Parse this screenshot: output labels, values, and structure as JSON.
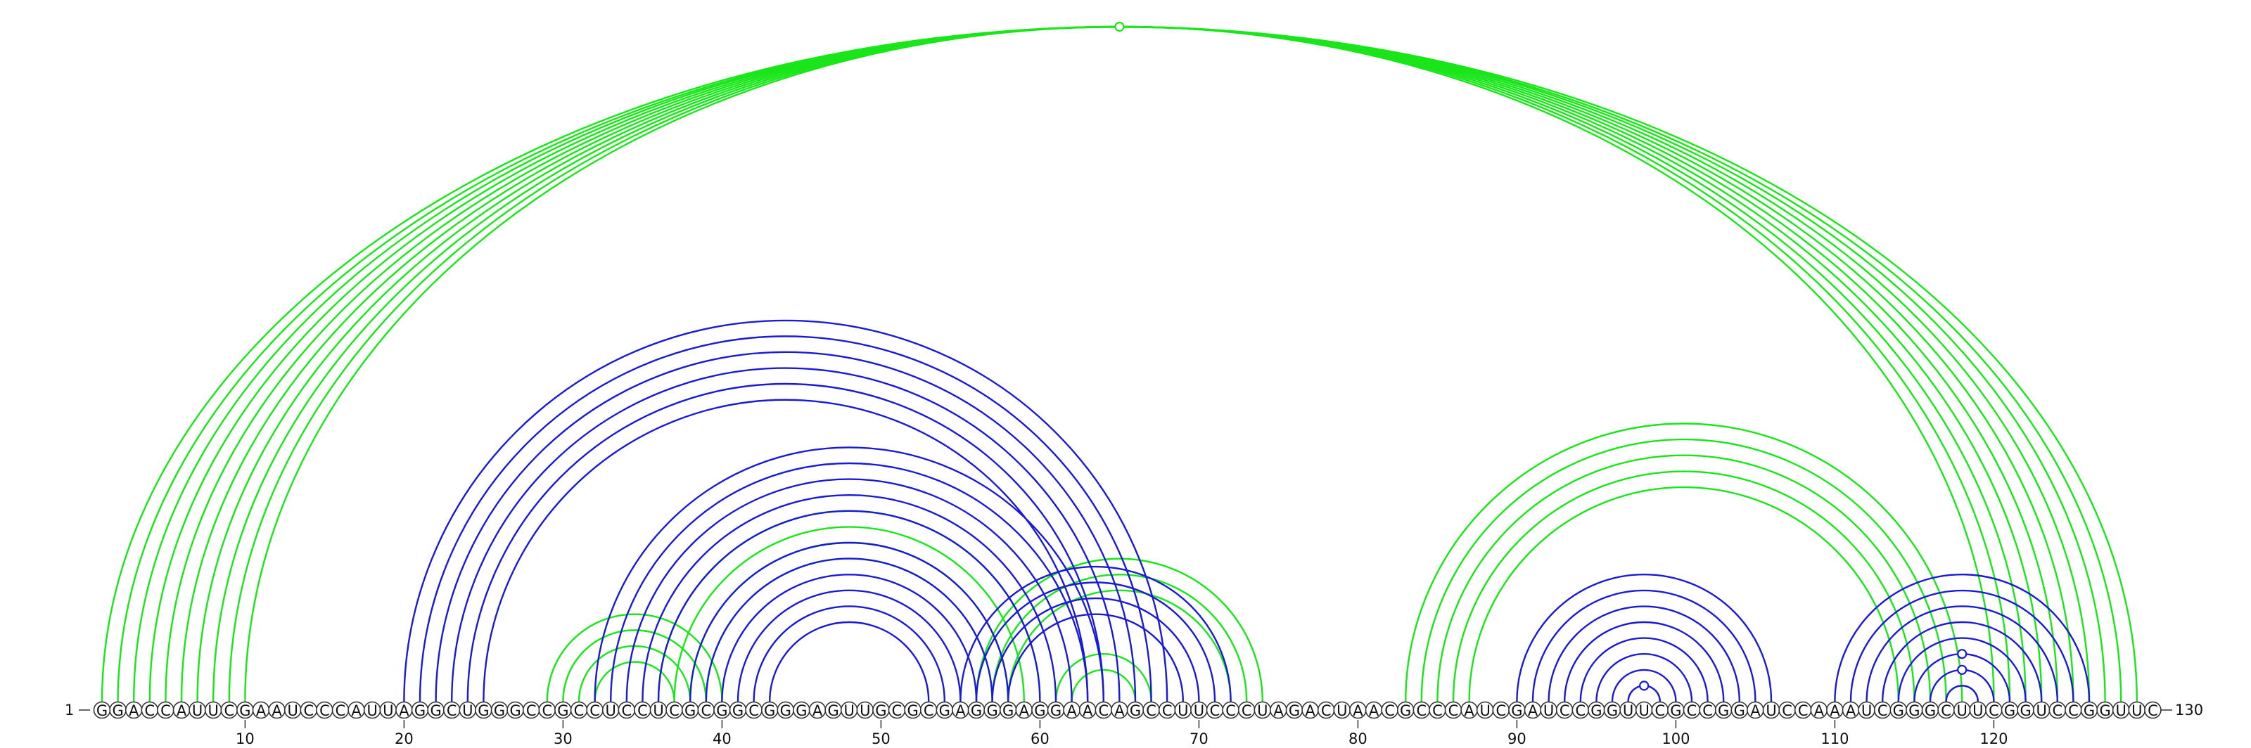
{
  "sequence": "GGACCAUUCGAAUCCCAUUAGGCUGGGCCGCCUCCUCGCGGCGGGAGUUGCGCGAGGGAGGAACAGCCUUCCCUAGACUAACGCCCAUCGAUCCGGUUCGCCGGAUCCAAAUCGGGCUUCGGUCCGGUUC",
  "start_label": "1",
  "end_label": "130",
  "ticks": [
    "10",
    "20",
    "30",
    "40",
    "50",
    "60",
    "70",
    "80",
    "90",
    "100",
    "110",
    "120"
  ],
  "colors": {
    "green": "#19e619",
    "blue": "#1a1ad6"
  },
  "chart_data": {
    "type": "arc-diagram",
    "length": 130,
    "series": [
      {
        "color": "green",
        "pairs": [
          [
            1,
            129
          ],
          [
            2,
            128
          ],
          [
            3,
            127
          ],
          [
            4,
            126
          ],
          [
            5,
            125
          ],
          [
            6,
            124
          ],
          [
            7,
            123
          ],
          [
            8,
            122
          ],
          [
            9,
            121
          ],
          [
            10,
            120
          ],
          [
            29,
            40
          ],
          [
            30,
            39
          ],
          [
            31,
            38
          ],
          [
            32,
            37
          ],
          [
            36,
            60
          ],
          [
            37,
            59
          ],
          [
            38,
            58
          ],
          [
            39,
            57
          ],
          [
            56,
            74
          ],
          [
            57,
            73
          ],
          [
            58,
            72
          ],
          [
            61,
            67
          ],
          [
            62,
            66
          ],
          [
            83,
            118
          ],
          [
            84,
            117
          ],
          [
            85,
            116
          ],
          [
            86,
            115
          ],
          [
            87,
            114
          ]
        ],
        "markers": [
          65
        ]
      },
      {
        "color": "blue",
        "pairs": [
          [
            20,
            68
          ],
          [
            21,
            67
          ],
          [
            22,
            66
          ],
          [
            23,
            65
          ],
          [
            24,
            64
          ],
          [
            25,
            63
          ],
          [
            32,
            64
          ],
          [
            33,
            63
          ],
          [
            34,
            62
          ],
          [
            35,
            61
          ],
          [
            36,
            60
          ],
          [
            38,
            58
          ],
          [
            39,
            57
          ],
          [
            40,
            56
          ],
          [
            41,
            55
          ],
          [
            42,
            54
          ],
          [
            43,
            53
          ],
          [
            55,
            72
          ],
          [
            56,
            71
          ],
          [
            57,
            70
          ],
          [
            58,
            69
          ],
          [
            90,
            106
          ],
          [
            91,
            105
          ],
          [
            92,
            104
          ],
          [
            93,
            103
          ],
          [
            94,
            102
          ],
          [
            95,
            101
          ],
          [
            96,
            100
          ],
          [
            97,
            99
          ],
          [
            110,
            126
          ],
          [
            111,
            125
          ],
          [
            112,
            124
          ],
          [
            113,
            123
          ],
          [
            114,
            122
          ],
          [
            115,
            121
          ],
          [
            116,
            120
          ],
          [
            117,
            119
          ]
        ],
        "markers": [
          98,
          118,
          119,
          120,
          121
        ]
      }
    ]
  }
}
